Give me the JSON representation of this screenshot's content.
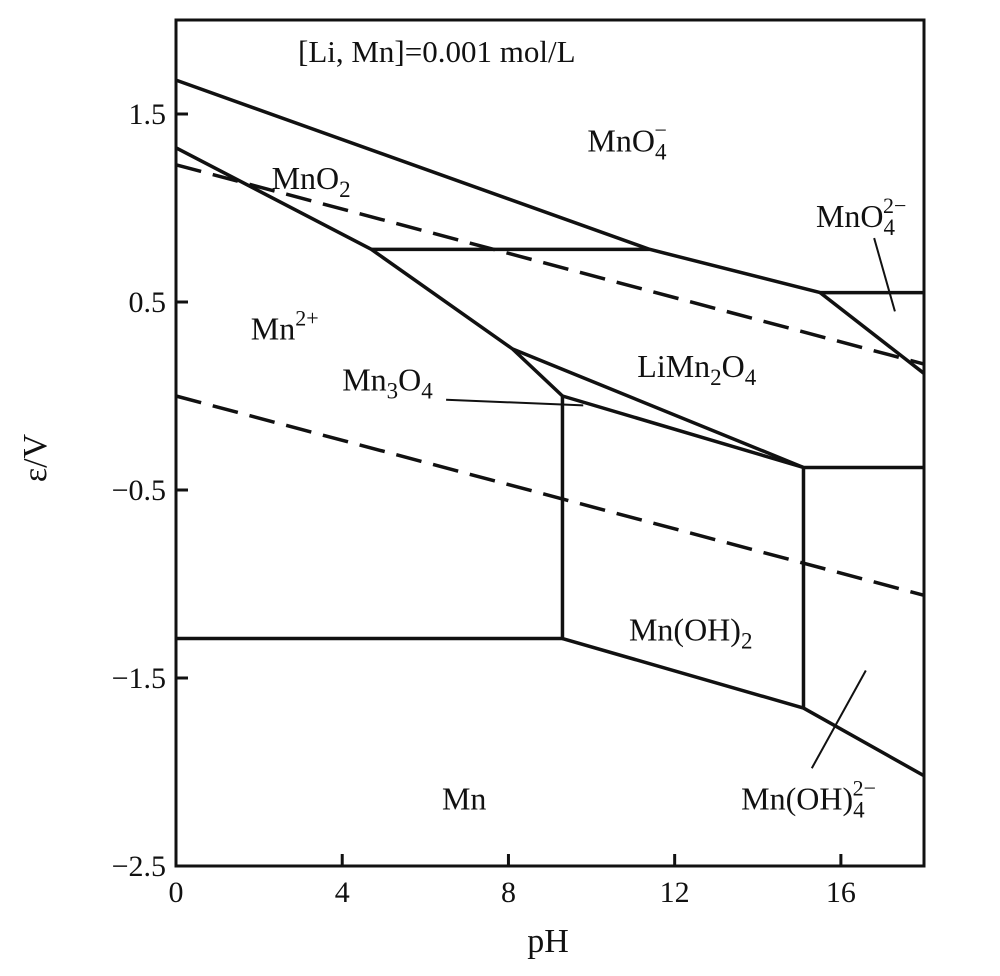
{
  "chart_data": {
    "type": "line",
    "title": "",
    "annotation": "[Li, Mn]=0.001 mol/L",
    "xlabel": "pH",
    "ylabel": "ε/V",
    "xlim": [
      0,
      18
    ],
    "ylim": [
      -2.5,
      2.0
    ],
    "xticks": [
      0,
      4,
      8,
      12,
      16
    ],
    "yticks": [
      1.5,
      0.5,
      -0.5,
      -1.5,
      -2.5
    ],
    "grid": false,
    "legend": "none",
    "colors": {
      "line": "#111111",
      "frame": "#111111"
    },
    "series": [
      {
        "style": "solid",
        "points": [
          [
            0,
            1.68
          ],
          [
            11.4,
            0.78
          ],
          [
            15.5,
            0.55
          ],
          [
            18,
            0.55
          ]
        ]
      },
      {
        "style": "solid",
        "points": [
          [
            0,
            1.32
          ],
          [
            4.7,
            0.78
          ],
          [
            8.1,
            0.25
          ],
          [
            9.3,
            0.0
          ],
          [
            9.3,
            -1.29
          ],
          [
            0,
            -1.29
          ]
        ]
      },
      {
        "style": "solid",
        "points": [
          [
            4.7,
            0.78
          ],
          [
            11.4,
            0.78
          ]
        ]
      },
      {
        "style": "solid",
        "points": [
          [
            15.5,
            0.55
          ],
          [
            18,
            0.12
          ]
        ]
      },
      {
        "style": "solid",
        "points": [
          [
            8.1,
            0.25
          ],
          [
            15.1,
            -0.38
          ],
          [
            18,
            -0.38
          ]
        ]
      },
      {
        "style": "solid",
        "points": [
          [
            9.3,
            0.0
          ],
          [
            15.1,
            -0.38
          ]
        ]
      },
      {
        "style": "solid",
        "points": [
          [
            15.1,
            -0.38
          ],
          [
            15.1,
            -1.66
          ]
        ]
      },
      {
        "style": "solid",
        "points": [
          [
            9.3,
            -1.29
          ],
          [
            15.1,
            -1.66
          ],
          [
            18,
            -2.02
          ]
        ]
      },
      {
        "style": "dashed",
        "points": [
          [
            0,
            1.23
          ],
          [
            18,
            0.17
          ]
        ]
      },
      {
        "style": "dashed",
        "points": [
          [
            0,
            0.0
          ],
          [
            18,
            -1.06
          ]
        ]
      }
    ],
    "region_labels": [
      {
        "text": "MnO",
        "sub": "4",
        "sup": "−",
        "x": 9.9,
        "y": 1.3
      },
      {
        "text": "MnO",
        "sub": "2",
        "sup": "",
        "x": 2.3,
        "y": 1.1
      },
      {
        "text": "MnO",
        "sub": "4",
        "sup": "2−",
        "x": 15.4,
        "y": 0.9
      },
      {
        "text": "Mn",
        "sub": "",
        "sup": "2+",
        "x": 1.8,
        "y": 0.3
      },
      {
        "text": "Mn",
        "sub": "3",
        "sup": "",
        "x": 4.0,
        "y": 0.03
      },
      {
        "text": "LiMn",
        "sub": "2",
        "sup": "",
        "x": 11.1,
        "y": 0.1
      },
      {
        "text": "Mn(OH)",
        "sub": "2",
        "sup": "",
        "x": 10.9,
        "y": -1.3
      },
      {
        "text": "Mn(OH)",
        "sub": "4",
        "sup": "2−",
        "x": 13.6,
        "y": -2.2
      },
      {
        "text": "Mn",
        "sub": "",
        "sup": "",
        "x": 6.4,
        "y": -2.2
      }
    ],
    "region_labels_suffix": [
      {
        "text": "O",
        "sub": "4"
      },
      {
        "text": "O",
        "sub": "4"
      }
    ],
    "pointer_lines": [
      {
        "from": [
          6.5,
          -0.02
        ],
        "to": [
          9.8,
          -0.05
        ]
      },
      {
        "from": [
          16.8,
          0.84
        ],
        "to": [
          17.3,
          0.45
        ]
      },
      {
        "from": [
          16.6,
          -1.46
        ],
        "to": [
          15.3,
          -1.98
        ]
      }
    ]
  }
}
